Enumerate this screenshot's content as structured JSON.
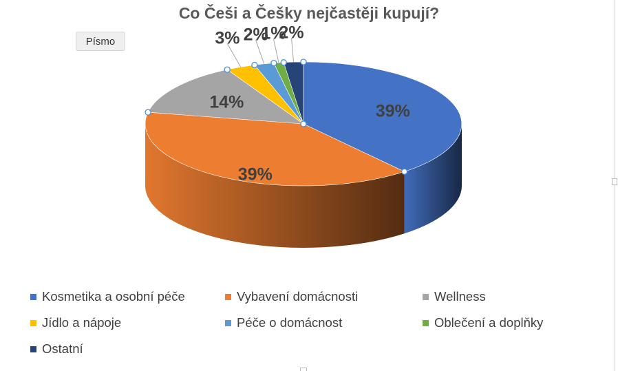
{
  "chart_data": {
    "type": "pie",
    "title": "Co Češi a Češky nejčastěji kupují?",
    "categories": [
      "Kosmetika a osobní péče",
      "Vybavení domácnosti",
      "Wellness",
      "Jídlo a nápoje",
      "Péče o domácnost",
      "Oblečení a doplňky",
      "Ostatní"
    ],
    "values": [
      39,
      39,
      14,
      3,
      2,
      1,
      2
    ],
    "labels": [
      "39%",
      "39%",
      "14%",
      "3%",
      "2%",
      "1%",
      "2%"
    ],
    "colors": [
      "#4472C4",
      "#ED7D31",
      "#A5A5A5",
      "#FFC000",
      "#5B9BD5",
      "#70AD47",
      "#264478"
    ],
    "legend_position": "bottom"
  },
  "toolbar": {
    "font_button_label": "Písmo"
  }
}
